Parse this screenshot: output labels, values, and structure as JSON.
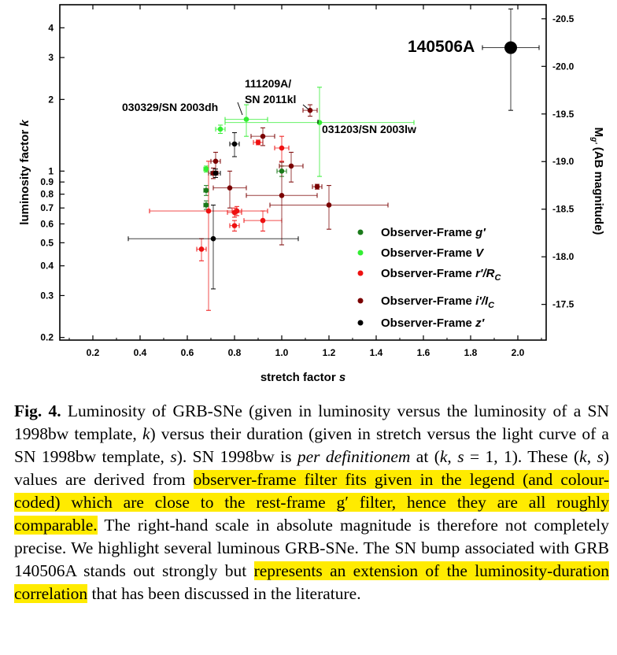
{
  "chart_data": {
    "type": "scatter",
    "xlabel": "stretch factor s",
    "ylabel": "luminosity factor k",
    "y2label": "M_g' (AB magnitude)",
    "x_log": false,
    "y_log": true,
    "xlim": [
      0.06,
      2.12
    ],
    "ylim": [
      0.195,
      5.0
    ],
    "x_ticks": [
      "0.2",
      "0.4",
      "0.6",
      "0.8",
      "1.0",
      "1.2",
      "1.4",
      "1.6",
      "1.8",
      "2.0"
    ],
    "y_ticks": [
      "0.2",
      "0.3",
      "0.4",
      "0.5",
      "0.6",
      "0.7",
      "0.8",
      "0.9",
      "1",
      "2",
      "3",
      "4"
    ],
    "y2_ticks": [
      "-20.5",
      "-20.0",
      "-19.5",
      "-19.0",
      "-18.5",
      "-18.0",
      "-17.5"
    ],
    "legend_position": "bottom-right",
    "series": [
      {
        "name": "Observer-Frame g'",
        "color": "#1a7a1a",
        "points": [
          {
            "x": 0.68,
            "y": 0.83,
            "xerr": 0.01,
            "yerr": 0.04
          },
          {
            "x": 0.68,
            "y": 0.72,
            "xerr": 0.01,
            "yerr": 0.03
          },
          {
            "x": 1.0,
            "y": 1.0,
            "xerr": 0.02,
            "yerr": 0.05
          }
        ]
      },
      {
        "name": "Observer-Frame V",
        "color": "#33ee33",
        "points": [
          {
            "x": 0.68,
            "y": 1.02,
            "xerr": 0.01,
            "yerr": 0.03
          },
          {
            "x": 0.74,
            "y": 1.5,
            "xerr": 0.02,
            "yerr": 0.06
          },
          {
            "x": 0.85,
            "y": 1.65,
            "xerr": 0.09,
            "yerr": 0.25
          },
          {
            "x": 1.16,
            "y": 1.6,
            "xerr": 0.4,
            "yerr": 0.65
          }
        ]
      },
      {
        "name": "Observer-Frame r'/Rc",
        "color": "#ee1111",
        "points": [
          {
            "x": 0.66,
            "y": 0.47,
            "xerr": 0.02,
            "yerr": 0.05
          },
          {
            "x": 0.69,
            "y": 0.68,
            "xerr": 0.25,
            "yerr": 0.42
          },
          {
            "x": 0.8,
            "y": 0.59,
            "xerr": 0.02,
            "yerr": 0.03
          },
          {
            "x": 0.8,
            "y": 0.67,
            "xerr": 0.03,
            "yerr": 0.03
          },
          {
            "x": 0.81,
            "y": 0.68,
            "xerr": 0.02,
            "yerr": 0.03
          },
          {
            "x": 0.9,
            "y": 1.32,
            "xerr": 0.02,
            "yerr": 0.03
          },
          {
            "x": 0.92,
            "y": 0.62,
            "xerr": 0.08,
            "yerr": 0.06
          },
          {
            "x": 1.0,
            "y": 1.25,
            "xerr": 0.03,
            "yerr": 0.15
          }
        ]
      },
      {
        "name": "Observer-Frame i'/Ic",
        "color": "#7a0000",
        "points": [
          {
            "x": 0.71,
            "y": 0.98,
            "xerr": 0.02,
            "yerr": 0.05
          },
          {
            "x": 0.72,
            "y": 1.1,
            "xerr": 0.02,
            "yerr": 0.1
          },
          {
            "x": 0.78,
            "y": 0.85,
            "xerr": 0.07,
            "yerr": 0.15
          },
          {
            "x": 0.92,
            "y": 1.4,
            "xerr": 0.05,
            "yerr": 0.12
          },
          {
            "x": 1.0,
            "y": 0.79,
            "xerr": 0.15,
            "yerr": 0.3
          },
          {
            "x": 1.04,
            "y": 1.05,
            "xerr": 0.05,
            "yerr": 0.15
          },
          {
            "x": 1.12,
            "y": 1.8,
            "xerr": 0.03,
            "yerr": 0.1
          },
          {
            "x": 1.15,
            "y": 0.86,
            "xerr": 0.02,
            "yerr": 0.02
          },
          {
            "x": 1.2,
            "y": 0.72,
            "xerr": 0.25,
            "yerr": 0.15
          }
        ]
      },
      {
        "name": "Observer-Frame z'",
        "color": "#000000",
        "points": [
          {
            "x": 0.71,
            "y": 0.52,
            "xerr": 0.36,
            "yerr": 0.2
          },
          {
            "x": 0.72,
            "y": 0.98,
            "xerr": 0.02,
            "yerr": 0.04
          },
          {
            "x": 0.8,
            "y": 1.3,
            "xerr": 0.02,
            "yerr": 0.15
          },
          {
            "x": 1.97,
            "y": 3.3,
            "xerr": 0.12,
            "yerr": 1.5
          }
        ]
      }
    ],
    "annotations": [
      {
        "text": "140506A",
        "x": 1.97,
        "y": 3.3
      },
      {
        "text": "111209A/",
        "x": 1.12,
        "y": 1.8
      },
      {
        "text": "SN 2011kl",
        "x": 1.12,
        "y": 1.8
      },
      {
        "text": "030329/SN 2003dh",
        "x": 0.85,
        "y": 1.65
      },
      {
        "text": "031203/SN 2003lw",
        "x": 1.16,
        "y": 1.6
      }
    ]
  },
  "caption": {
    "fig_label": "Fig. 4.",
    "part1": " Luminosity of GRB-SNe (given in luminosity versus the luminosity of a SN 1998bw template, ",
    "k": "k",
    "part2": ") versus their duration (given in stretch versus the light curve of a SN 1998bw template, ",
    "s": "s",
    "part3": "). SN 1998bw is ",
    "italic": "per definitionem",
    "part4": " at (",
    "k2": "k",
    "part5": ", ",
    "s2": "s",
    "part6": " = 1, 1). These (",
    "k3": "k",
    "part7": ", ",
    "s3": "s",
    "part8": ") values are derived from ",
    "highlight1": "observer-frame filter fits given in the legend (and colour-coded) which are close to the rest-frame g′ filter, hence they are all roughly comparable.",
    "part9": " The right-hand scale in absolute magnitude is therefore not completely precise. We highlight several luminous GRB-SNe. The SN bump associated with GRB 140506A stands out strongly but ",
    "highlight2": "represents an extension of the luminosity-duration correlation",
    "part10": " that has been discussed in the literature."
  }
}
